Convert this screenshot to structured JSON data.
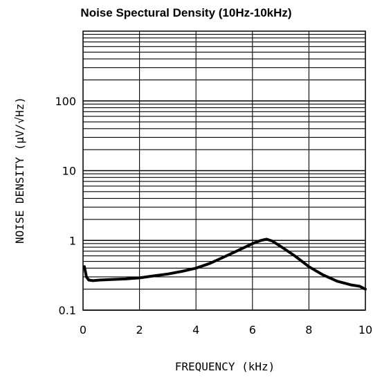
{
  "chart_data": {
    "type": "line",
    "title": "Noise Spectural Density (10Hz-10kHz)",
    "xlabel": "FREQUENCY (kHz)",
    "ylabel": "NOISE DENSITY (μV/√Hz)",
    "xlim": [
      0,
      10
    ],
    "ylim": [
      0.1,
      1000
    ],
    "yscale": "log",
    "grid": true,
    "xticks": [
      "0",
      "2",
      "4",
      "6",
      "8",
      "10"
    ],
    "yticks": [
      "0.1",
      "1",
      "10",
      "100"
    ],
    "series": [
      {
        "color": "#000000",
        "x": [
          0.05,
          0.12,
          0.2,
          0.35,
          0.6,
          1.0,
          1.5,
          2.0,
          2.5,
          3.0,
          3.5,
          4.0,
          4.5,
          5.0,
          5.5,
          6.0,
          6.3,
          6.5,
          6.7,
          7.0,
          7.5,
          8.0,
          8.5,
          9.0,
          9.5,
          9.8,
          10.0
        ],
        "y": [
          0.42,
          0.3,
          0.27,
          0.265,
          0.27,
          0.275,
          0.28,
          0.29,
          0.31,
          0.33,
          0.36,
          0.4,
          0.47,
          0.58,
          0.72,
          0.9,
          1.0,
          1.04,
          0.98,
          0.82,
          0.6,
          0.42,
          0.32,
          0.26,
          0.23,
          0.22,
          0.2
        ]
      }
    ]
  }
}
